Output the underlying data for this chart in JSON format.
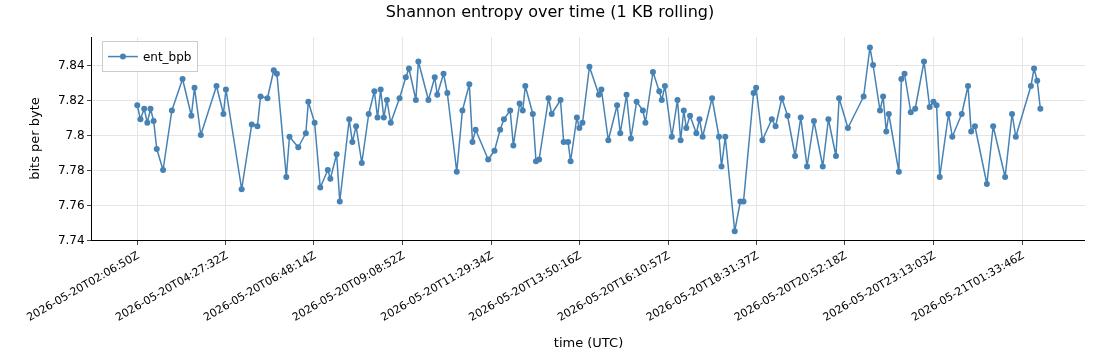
{
  "chart_data": {
    "type": "line",
    "title": "Shannon entropy over time (1 KB rolling)",
    "xlabel": "time (UTC)",
    "ylabel": "bits per byte",
    "x": [
      "2026-05-20T02:07",
      "2026-05-20T02:12",
      "2026-05-20T02:18",
      "2026-05-20T02:23",
      "2026-05-20T02:28",
      "2026-05-20T02:33",
      "2026-05-20T02:38",
      "2026-05-20T02:48",
      "2026-05-20T03:02",
      "2026-05-20T03:19",
      "2026-05-20T03:33",
      "2026-05-20T03:38",
      "2026-05-20T03:48",
      "2026-05-20T04:13",
      "2026-05-20T04:24",
      "2026-05-20T04:28",
      "2026-05-20T04:53",
      "2026-05-20T05:09",
      "2026-05-20T05:18",
      "2026-05-20T05:23",
      "2026-05-20T05:34",
      "2026-05-20T05:44",
      "2026-05-20T05:49",
      "2026-05-20T06:04",
      "2026-05-20T06:09",
      "2026-05-20T06:23",
      "2026-05-20T06:35",
      "2026-05-20T06:39",
      "2026-05-20T06:49",
      "2026-05-20T06:58",
      "2026-05-20T07:10",
      "2026-05-20T07:14",
      "2026-05-20T07:24",
      "2026-05-20T07:29",
      "2026-05-20T07:44",
      "2026-05-20T07:49",
      "2026-05-20T07:55",
      "2026-05-20T08:04",
      "2026-05-20T08:15",
      "2026-05-20T08:24",
      "2026-05-20T08:29",
      "2026-05-20T08:34",
      "2026-05-20T08:39",
      "2026-05-20T08:44",
      "2026-05-20T08:50",
      "2026-05-20T09:04",
      "2026-05-20T09:14",
      "2026-05-20T09:19",
      "2026-05-20T09:30",
      "2026-05-20T09:34",
      "2026-05-20T09:50",
      "2026-05-20T10:00",
      "2026-05-20T10:04",
      "2026-05-20T10:14",
      "2026-05-20T10:20",
      "2026-05-20T10:35",
      "2026-05-20T10:44",
      "2026-05-20T10:55",
      "2026-05-20T11:00",
      "2026-05-20T11:05",
      "2026-05-20T11:25",
      "2026-05-20T11:35",
      "2026-05-20T11:44",
      "2026-05-20T11:50",
      "2026-05-20T12:00",
      "2026-05-20T12:05",
      "2026-05-20T12:15",
      "2026-05-20T12:20",
      "2026-05-20T12:24",
      "2026-05-20T12:36",
      "2026-05-20T12:41",
      "2026-05-20T12:46",
      "2026-05-20T13:01",
      "2026-05-20T13:06",
      "2026-05-20T13:20",
      "2026-05-20T13:25",
      "2026-05-20T13:32",
      "2026-05-20T13:36",
      "2026-05-20T13:46",
      "2026-05-20T13:50",
      "2026-05-20T13:55",
      "2026-05-20T14:06",
      "2026-05-20T14:21",
      "2026-05-20T14:25",
      "2026-05-20T14:36",
      "2026-05-20T14:50",
      "2026-05-20T14:55",
      "2026-05-20T15:05",
      "2026-05-20T15:12",
      "2026-05-20T15:21",
      "2026-05-20T15:31",
      "2026-05-20T15:35",
      "2026-05-20T15:47",
      "2026-05-20T15:57",
      "2026-05-20T16:01",
      "2026-05-20T16:06",
      "2026-05-20T16:17",
      "2026-05-20T16:26",
      "2026-05-20T16:31",
      "2026-05-20T16:36",
      "2026-05-20T16:40",
      "2026-05-20T16:46",
      "2026-05-20T16:56",
      "2026-05-20T17:01",
      "2026-05-20T17:06",
      "2026-05-20T17:21",
      "2026-05-20T17:32",
      "2026-05-20T17:36",
      "2026-05-20T17:42",
      "2026-05-20T17:57",
      "2026-05-20T18:06",
      "2026-05-20T18:11",
      "2026-05-20T18:27",
      "2026-05-20T18:31",
      "2026-05-20T18:41",
      "2026-05-20T18:56",
      "2026-05-20T19:02",
      "2026-05-20T19:12",
      "2026-05-20T19:21",
      "2026-05-20T19:33",
      "2026-05-20T19:42",
      "2026-05-20T19:52",
      "2026-05-20T20:03",
      "2026-05-20T20:17",
      "2026-05-20T20:26",
      "2026-05-20T20:38",
      "2026-05-20T20:43",
      "2026-05-20T20:57",
      "2026-05-20T21:22",
      "2026-05-20T21:32",
      "2026-05-20T21:37",
      "2026-05-20T21:48",
      "2026-05-20T21:53",
      "2026-05-20T21:58",
      "2026-05-20T22:02",
      "2026-05-20T22:18",
      "2026-05-20T22:22",
      "2026-05-20T22:27",
      "2026-05-20T22:37",
      "2026-05-20T22:44",
      "2026-05-20T22:58",
      "2026-05-20T23:07",
      "2026-05-20T23:13",
      "2026-05-20T23:18",
      "2026-05-20T23:23",
      "2026-05-20T23:37",
      "2026-05-20T23:43",
      "2026-05-20T23:58",
      "2026-05-21T00:08",
      "2026-05-21T00:13",
      "2026-05-21T00:19",
      "2026-05-21T00:38",
      "2026-05-21T00:48",
      "2026-05-21T01:07",
      "2026-05-21T01:18",
      "2026-05-21T01:24",
      "2026-05-21T01:48",
      "2026-05-21T01:53",
      "2026-05-21T01:58",
      "2026-05-21T02:03"
    ],
    "series": [
      {
        "name": "ent_bpb",
        "color": "#4682b4",
        "values": [
          7.817,
          7.809,
          7.815,
          7.807,
          7.815,
          7.808,
          7.792,
          7.78,
          7.814,
          7.832,
          7.811,
          7.827,
          7.8,
          7.828,
          7.812,
          7.826,
          7.769,
          7.806,
          7.805,
          7.822,
          7.821,
          7.837,
          7.835,
          7.776,
          7.799,
          7.793,
          7.801,
          7.819,
          7.807,
          7.77,
          7.78,
          7.775,
          7.789,
          7.762,
          7.809,
          7.796,
          7.805,
          7.784,
          7.812,
          7.825,
          7.81,
          7.826,
          7.81,
          7.82,
          7.807,
          7.821,
          7.833,
          7.838,
          7.82,
          7.842,
          7.82,
          7.833,
          7.823,
          7.835,
          7.824,
          7.779,
          7.814,
          7.829,
          7.796,
          7.803,
          7.786,
          7.791,
          7.803,
          7.809,
          7.814,
          7.794,
          7.818,
          7.814,
          7.828,
          7.812,
          7.785,
          7.786,
          7.821,
          7.812,
          7.82,
          7.796,
          7.796,
          7.785,
          7.81,
          7.804,
          7.807,
          7.839,
          7.823,
          7.826,
          7.797,
          7.817,
          7.801,
          7.823,
          7.798,
          7.819,
          7.814,
          7.807,
          7.836,
          7.825,
          7.82,
          7.828,
          7.799,
          7.82,
          7.797,
          7.814,
          7.804,
          7.811,
          7.801,
          7.809,
          7.799,
          7.821,
          7.799,
          7.782,
          7.799,
          7.745,
          7.762,
          7.762,
          7.824,
          7.827,
          7.797,
          7.809,
          7.805,
          7.821,
          7.811,
          7.788,
          7.81,
          7.782,
          7.808,
          7.782,
          7.809,
          7.788,
          7.821,
          7.804,
          7.822,
          7.85,
          7.84,
          7.814,
          7.822,
          7.802,
          7.812,
          7.779,
          7.832,
          7.835,
          7.813,
          7.815,
          7.842,
          7.816,
          7.819,
          7.817,
          7.776,
          7.812,
          7.799,
          7.812,
          7.828,
          7.802,
          7.805,
          7.772,
          7.805,
          7.776,
          7.812,
          7.799,
          7.828,
          7.838,
          7.831,
          7.815
        ]
      }
    ],
    "xlim": [
      "2026-05-20T00:55",
      "2026-05-21T03:14"
    ],
    "xticks": [
      {
        "value": "2026-05-20T02:07",
        "label": "2026-05-20T02:06:50Z"
      },
      {
        "value": "2026-05-20T04:28",
        "label": "2026-05-20T04:27:32Z"
      },
      {
        "value": "2026-05-20T06:48",
        "label": "2026-05-20T06:48:14Z"
      },
      {
        "value": "2026-05-20T09:09",
        "label": "2026-05-20T09:08:52Z"
      },
      {
        "value": "2026-05-20T11:30",
        "label": "2026-05-20T11:29:34Z"
      },
      {
        "value": "2026-05-20T13:50",
        "label": "2026-05-20T13:50:16Z"
      },
      {
        "value": "2026-05-20T16:11",
        "label": "2026-05-20T16:10:57Z"
      },
      {
        "value": "2026-05-20T18:32",
        "label": "2026-05-20T18:31:37Z"
      },
      {
        "value": "2026-05-20T20:52",
        "label": "2026-05-20T20:52:18Z"
      },
      {
        "value": "2026-05-20T23:13",
        "label": "2026-05-20T23:13:03Z"
      },
      {
        "value": "2026-05-21T01:34",
        "label": "2026-05-21T01:33:46Z"
      }
    ],
    "ylim": [
      7.74,
      7.856
    ],
    "yticks": [
      7.74,
      7.76,
      7.78,
      7.8,
      7.82,
      7.84
    ],
    "grid": true,
    "legend": "top left",
    "marker": "circle",
    "line_style": "solid"
  }
}
